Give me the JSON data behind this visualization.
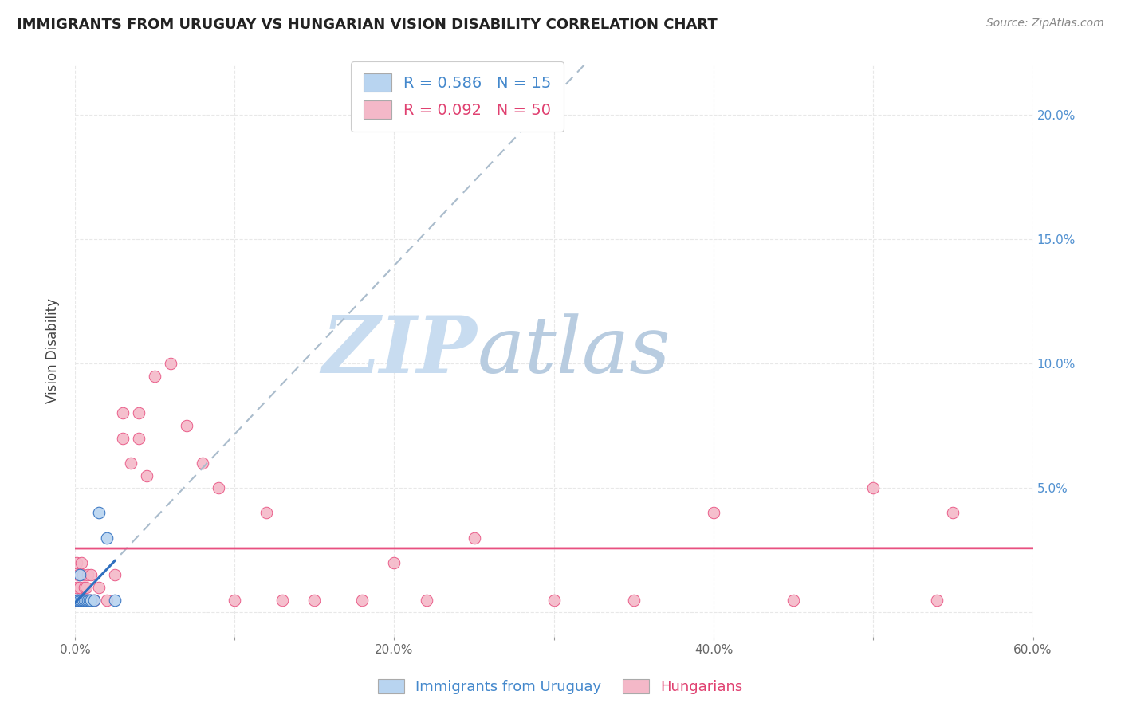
{
  "title": "IMMIGRANTS FROM URUGUAY VS HUNGARIAN VISION DISABILITY CORRELATION CHART",
  "source_text": "Source: ZipAtlas.com",
  "ylabel": "Vision Disability",
  "legend_label1": "Immigrants from Uruguay",
  "legend_label2": "Hungarians",
  "R1": 0.586,
  "N1": 15,
  "R2": 0.092,
  "N2": 50,
  "xlim": [
    0.0,
    0.6
  ],
  "ylim": [
    -0.01,
    0.22
  ],
  "xticks": [
    0.0,
    0.1,
    0.2,
    0.3,
    0.4,
    0.5,
    0.6
  ],
  "yticks": [
    0.0,
    0.05,
    0.1,
    0.15,
    0.2
  ],
  "ytick_labels": [
    "",
    "5.0%",
    "10.0%",
    "15.0%",
    "20.0%"
  ],
  "xtick_labels": [
    "0.0%",
    "",
    "20.0%",
    "",
    "40.0%",
    "",
    "60.0%"
  ],
  "color_blue": "#B8D4F0",
  "color_pink": "#F4B8C8",
  "trendline_blue_dashed": "#AABCCC",
  "trendline_blue_solid": "#3070C0",
  "trendline_pink": "#E85080",
  "watermark_zip_color": "#C8DCF0",
  "watermark_atlas_color": "#B8CCE0",
  "background_color": "#FFFFFF",
  "grid_color": "#E8E8E8",
  "uruguay_x": [
    0.001,
    0.002,
    0.003,
    0.003,
    0.004,
    0.005,
    0.006,
    0.007,
    0.008,
    0.009,
    0.01,
    0.012,
    0.015,
    0.02,
    0.025
  ],
  "uruguay_y": [
    0.005,
    0.005,
    0.005,
    0.015,
    0.005,
    0.005,
    0.005,
    0.005,
    0.005,
    0.005,
    0.005,
    0.005,
    0.04,
    0.03,
    0.005
  ],
  "hungarian_x": [
    0.001,
    0.001,
    0.001,
    0.002,
    0.002,
    0.003,
    0.003,
    0.004,
    0.004,
    0.005,
    0.005,
    0.006,
    0.006,
    0.007,
    0.007,
    0.008,
    0.008,
    0.009,
    0.01,
    0.01,
    0.012,
    0.015,
    0.02,
    0.025,
    0.03,
    0.03,
    0.035,
    0.04,
    0.04,
    0.045,
    0.05,
    0.06,
    0.07,
    0.08,
    0.09,
    0.1,
    0.12,
    0.13,
    0.15,
    0.18,
    0.2,
    0.22,
    0.25,
    0.3,
    0.35,
    0.4,
    0.45,
    0.5,
    0.54,
    0.55
  ],
  "hungarian_y": [
    0.005,
    0.01,
    0.02,
    0.005,
    0.015,
    0.005,
    0.01,
    0.005,
    0.02,
    0.005,
    0.015,
    0.005,
    0.01,
    0.005,
    0.01,
    0.005,
    0.015,
    0.005,
    0.005,
    0.015,
    0.005,
    0.01,
    0.005,
    0.015,
    0.07,
    0.08,
    0.06,
    0.08,
    0.07,
    0.055,
    0.095,
    0.1,
    0.075,
    0.06,
    0.05,
    0.005,
    0.04,
    0.005,
    0.005,
    0.005,
    0.02,
    0.005,
    0.03,
    0.005,
    0.005,
    0.04,
    0.005,
    0.05,
    0.005,
    0.04
  ]
}
